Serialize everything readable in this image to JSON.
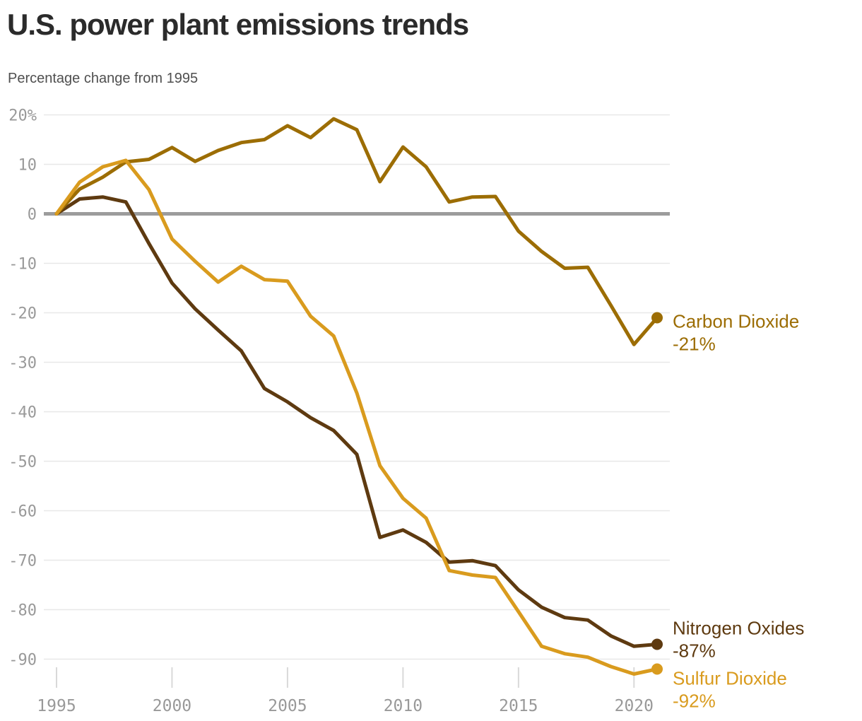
{
  "header": {
    "title": "U.S. power plant emissions trends",
    "subtitle": "Percentage change from 1995"
  },
  "chart_data": {
    "type": "line",
    "title": "U.S. power plant emissions trends",
    "subtitle": "Percentage change from 1995",
    "xlabel": "",
    "ylabel": "Percentage change from 1995",
    "xlim": [
      1995,
      2021
    ],
    "ylim": [
      -93,
      20
    ],
    "grid": true,
    "baseline": 0,
    "legend_position": "right-end-labels",
    "x": [
      1995,
      1996,
      1997,
      1998,
      1999,
      2000,
      2001,
      2002,
      2003,
      2004,
      2005,
      2006,
      2007,
      2008,
      2009,
      2010,
      2011,
      2012,
      2013,
      2014,
      2015,
      2016,
      2017,
      2018,
      2019,
      2020,
      2021
    ],
    "x_ticks": [
      1995,
      2000,
      2005,
      2010,
      2015,
      2020
    ],
    "x_tick_labels": [
      "1995",
      "2000",
      "2005",
      "2010",
      "2015",
      "2020"
    ],
    "y_ticks": [
      20,
      10,
      0,
      -10,
      -20,
      -30,
      -40,
      -50,
      -60,
      -70,
      -80,
      -90
    ],
    "y_tick_labels": [
      "20%",
      "10",
      "0",
      "-10",
      "-20",
      "-30",
      "-40",
      "-50",
      "-60",
      "-70",
      "-80",
      "-90"
    ],
    "series": [
      {
        "name": "Carbon Dioxide",
        "end_label_value": "-21%",
        "color": "#9c6d04",
        "values": [
          0,
          5,
          7.4,
          10.5,
          11,
          13.4,
          10.6,
          12.8,
          14.4,
          15,
          17.8,
          15.4,
          19.2,
          17,
          6.5,
          13.5,
          9.5,
          2.4,
          3.4,
          3.5,
          -3.5,
          -7.6,
          -11,
          -10.8,
          -18.5,
          -26.4,
          -21
        ]
      },
      {
        "name": "Nitrogen Oxides",
        "end_label_value": "-87%",
        "color": "#5e3a10",
        "values": [
          0,
          3,
          3.4,
          2.4,
          -6,
          -14,
          -19.2,
          -23.5,
          -27.7,
          -35.3,
          -38,
          -41.2,
          -43.8,
          -48.6,
          -65.4,
          -63.9,
          -66.4,
          -70.4,
          -70.1,
          -71.1,
          -76,
          -79.5,
          -81.6,
          -82.1,
          -85.3,
          -87.4,
          -87
        ]
      },
      {
        "name": "Sulfur Dioxide",
        "end_label_value": "-92%",
        "color": "#d99b1e",
        "values": [
          0,
          6.4,
          9.5,
          10.8,
          4.9,
          -5.1,
          -9.6,
          -13.8,
          -10.6,
          -13.3,
          -13.6,
          -20.7,
          -24.7,
          -36.2,
          -50.9,
          -57.5,
          -61.5,
          -72.1,
          -73,
          -73.5,
          -80.4,
          -87.4,
          -88.9,
          -89.6,
          -91.5,
          -93,
          -92
        ]
      }
    ],
    "colors": {
      "grid_line": "#e8e8e8",
      "zero_line": "#9c9c9c",
      "axis_tick": "#d9d9d9",
      "axis_label": "#999999",
      "title": "#2b2b2b",
      "subtitle": "#4f4f4f"
    }
  }
}
